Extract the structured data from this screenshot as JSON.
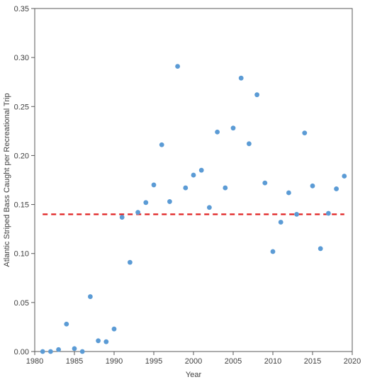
{
  "chart_data": {
    "type": "scatter",
    "title": "",
    "xlabel": "Year",
    "ylabel": "Atlantic Striped Bass Caught per Recreational Trip",
    "xlim": [
      1980,
      2020
    ],
    "ylim": [
      0,
      0.35
    ],
    "x_ticks": [
      1980,
      1985,
      1990,
      1995,
      2000,
      2005,
      2010,
      2015,
      2020
    ],
    "y_ticks": [
      0.0,
      0.05,
      0.1,
      0.15,
      0.2,
      0.25,
      0.3,
      0.35
    ],
    "y_tick_decimals": 2,
    "grid": false,
    "legend": "none",
    "series": [
      {
        "color": "#5B9BD5",
        "points": [
          {
            "x": 1981,
            "y": 0.0
          },
          {
            "x": 1982,
            "y": 0.0
          },
          {
            "x": 1983,
            "y": 0.002
          },
          {
            "x": 1984,
            "y": 0.028
          },
          {
            "x": 1985,
            "y": 0.003
          },
          {
            "x": 1986,
            "y": 0.0
          },
          {
            "x": 1987,
            "y": 0.056
          },
          {
            "x": 1988,
            "y": 0.011
          },
          {
            "x": 1989,
            "y": 0.01
          },
          {
            "x": 1990,
            "y": 0.023
          },
          {
            "x": 1991,
            "y": 0.137
          },
          {
            "x": 1992,
            "y": 0.091
          },
          {
            "x": 1993,
            "y": 0.142
          },
          {
            "x": 1994,
            "y": 0.152
          },
          {
            "x": 1995,
            "y": 0.17
          },
          {
            "x": 1996,
            "y": 0.211
          },
          {
            "x": 1997,
            "y": 0.153
          },
          {
            "x": 1998,
            "y": 0.291
          },
          {
            "x": 1999,
            "y": 0.167
          },
          {
            "x": 2000,
            "y": 0.18
          },
          {
            "x": 2001,
            "y": 0.185
          },
          {
            "x": 2002,
            "y": 0.147
          },
          {
            "x": 2003,
            "y": 0.224
          },
          {
            "x": 2004,
            "y": 0.167
          },
          {
            "x": 2005,
            "y": 0.228
          },
          {
            "x": 2006,
            "y": 0.279
          },
          {
            "x": 2007,
            "y": 0.212
          },
          {
            "x": 2008,
            "y": 0.262
          },
          {
            "x": 2009,
            "y": 0.172
          },
          {
            "x": 2010,
            "y": 0.102
          },
          {
            "x": 2011,
            "y": 0.132
          },
          {
            "x": 2012,
            "y": 0.162
          },
          {
            "x": 2013,
            "y": 0.14
          },
          {
            "x": 2014,
            "y": 0.223
          },
          {
            "x": 2015,
            "y": 0.169
          },
          {
            "x": 2016,
            "y": 0.105
          },
          {
            "x": 2017,
            "y": 0.141
          },
          {
            "x": 2018,
            "y": 0.166
          },
          {
            "x": 2019,
            "y": 0.179
          }
        ]
      }
    ],
    "reference_line": {
      "y": 0.14,
      "color": "#E02020",
      "style": "dashed"
    }
  },
  "colors": {
    "axis": "#595959",
    "text": "#404040",
    "background": "#ffffff"
  }
}
